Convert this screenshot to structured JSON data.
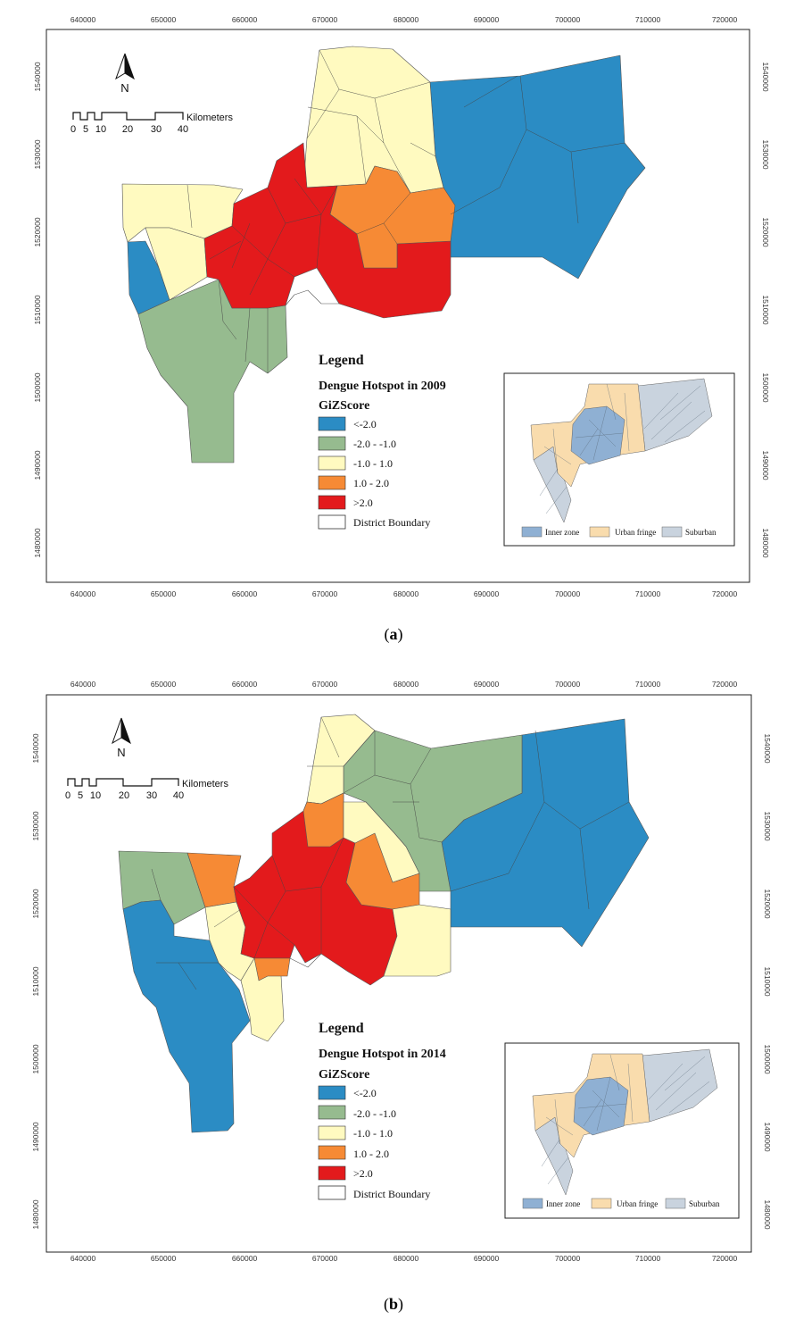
{
  "colors": {
    "gt_2": "#2b8cc4",
    "m2_m1": "#96bb8f",
    "m1_1": "#fffac0",
    "p1_2": "#f68a35",
    "p2": "#e31a1c",
    "inner_zone": "#8fb0d3",
    "urban_fringe": "#f9dcad",
    "suburban": "#c9d3de"
  },
  "axes": {
    "x_ticks": [
      "640000",
      "650000",
      "660000",
      "670000",
      "680000",
      "690000",
      "700000",
      "710000",
      "720000"
    ],
    "y_ticks": [
      "1540000",
      "1530000",
      "1520000",
      "1510000",
      "1500000",
      "1490000",
      "1480000"
    ],
    "x_ticks_gray": [
      "000000",
      "000000",
      "000000",
      "000000",
      "000000",
      "000000",
      "000000",
      "000000",
      "000000"
    ],
    "y_ticks_gray": [
      "000000",
      "000000",
      "000000",
      "000000",
      "000000",
      "000000",
      "000000"
    ]
  },
  "north_arrow": {
    "label": "N",
    "icon": "north-arrow-icon"
  },
  "scale_bar": {
    "unit": "Kilometers",
    "ticks": [
      "0",
      "5",
      "10",
      "20",
      "30",
      "40"
    ]
  },
  "inset": {
    "labels": [
      "Inner zone",
      "Urban fringe",
      "Suburban"
    ]
  },
  "panels": [
    {
      "caption_open": "(",
      "caption_letter": "a",
      "caption_close": ")",
      "legend": {
        "title": "Legend",
        "subtitle": "Dengue Hotspot in 2009",
        "field": "GiZScore",
        "items": [
          "<-2.0",
          "-2.0 - -1.0",
          "-1.0 - 1.0",
          "1.0 - 2.0",
          ">2.0",
          "District Boundary"
        ]
      }
    },
    {
      "caption_open": "(",
      "caption_letter": "b",
      "caption_close": ")",
      "legend": {
        "title": "Legend",
        "subtitle": "Dengue Hotspot in 2014",
        "field": "GiZScore",
        "items": [
          "<-2.0",
          "-2.0 - -1.0",
          "-1.0 - 1.0",
          "1.0 - 2.0",
          ">2.0",
          "District Boundary"
        ]
      }
    }
  ]
}
